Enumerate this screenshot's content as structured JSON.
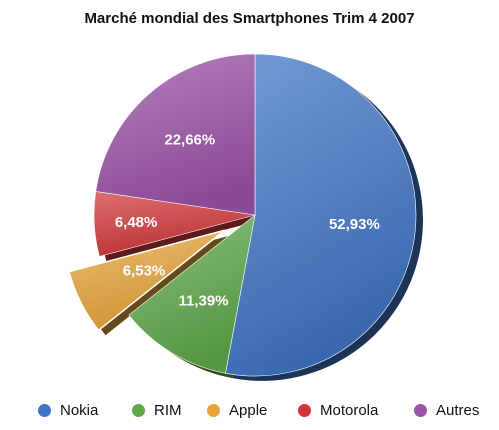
{
  "chart_data": {
    "type": "pie",
    "title": "Marché mondial des Smartphones Trim 4 2007",
    "slices": [
      {
        "name": "Nokia",
        "value": 52.93,
        "label": "52,93%",
        "color": "#3f74c4"
      },
      {
        "name": "RIM",
        "value": 11.39,
        "label": "11,39%",
        "color": "#5ea84a"
      },
      {
        "name": "Apple",
        "value": 6.53,
        "label": "6,53%",
        "color": "#e6a43c",
        "exploded": true
      },
      {
        "name": "Motorola",
        "value": 6.48,
        "label": "6,48%",
        "color": "#d1373a"
      },
      {
        "name": "Autres",
        "value": 22.66,
        "label": "22,66%",
        "color": "#9a52a6"
      }
    ],
    "legend_position": "bottom"
  }
}
